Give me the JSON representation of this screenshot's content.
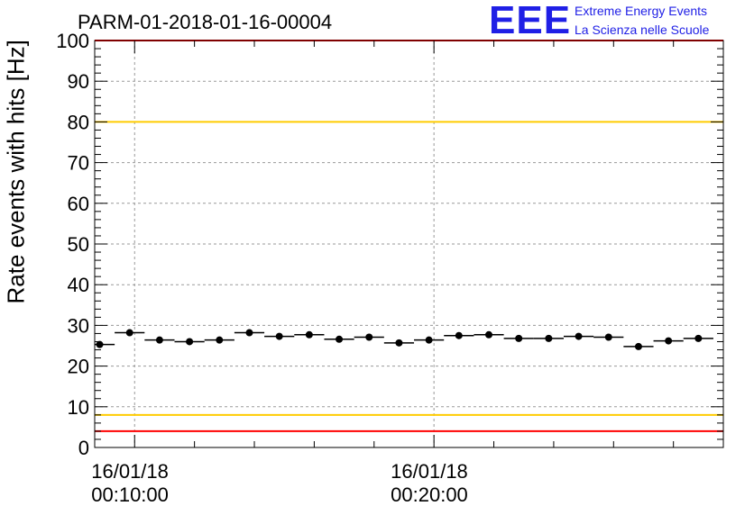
{
  "header": {
    "title": "PARM-01-2018-01-16-00004",
    "logo_text": "EEE",
    "logo_line1": "Extreme Energy Events",
    "logo_line2": "La Scienza nelle Scuole"
  },
  "colors": {
    "red_limit": "#ff0000",
    "yellow_limit": "#ffcc00",
    "points": "#000000",
    "grid": "#9a9a9a",
    "logo": "#1f1fe6"
  },
  "chart_data": {
    "type": "scatter",
    "title": "PARM-01-2018-01-16-00004",
    "ylabel": "Rate events with hits [Hz]",
    "xlabel": "",
    "ylim": [
      0,
      100
    ],
    "yticks": [
      0,
      10,
      20,
      30,
      40,
      50,
      60,
      70,
      80,
      90,
      100
    ],
    "xlim": [
      "2018-01-16 00:08:40",
      "2018-01-16 00:29:40"
    ],
    "xticks": [
      {
        "date": "16/01/18",
        "time": "00:10:00"
      },
      {
        "date": "16/01/18",
        "time": "00:20:00"
      }
    ],
    "grid": true,
    "bin_width_s": 60,
    "reference_lines": [
      {
        "y": 100,
        "color": "red"
      },
      {
        "y": 80,
        "color": "yellow"
      },
      {
        "y": 8,
        "color": "yellow"
      },
      {
        "y": 4,
        "color": "red"
      }
    ],
    "series": [
      {
        "x": [
          "00:08:50",
          "00:09:50",
          "00:10:50",
          "00:11:50",
          "00:12:50",
          "00:13:50",
          "00:14:50",
          "00:15:50",
          "00:16:50",
          "00:17:50",
          "00:18:50",
          "00:19:50",
          "00:20:50",
          "00:21:50",
          "00:22:50",
          "00:23:50",
          "00:24:50",
          "00:25:50",
          "00:26:50",
          "00:27:50",
          "00:28:50"
        ],
        "values": [
          25.3,
          28.2,
          26.4,
          26.0,
          26.4,
          28.2,
          27.3,
          27.7,
          26.6,
          27.1,
          25.7,
          26.4,
          27.5,
          27.7,
          26.8,
          26.8,
          27.3,
          27.1,
          24.8,
          26.2,
          26.8
        ]
      }
    ]
  }
}
